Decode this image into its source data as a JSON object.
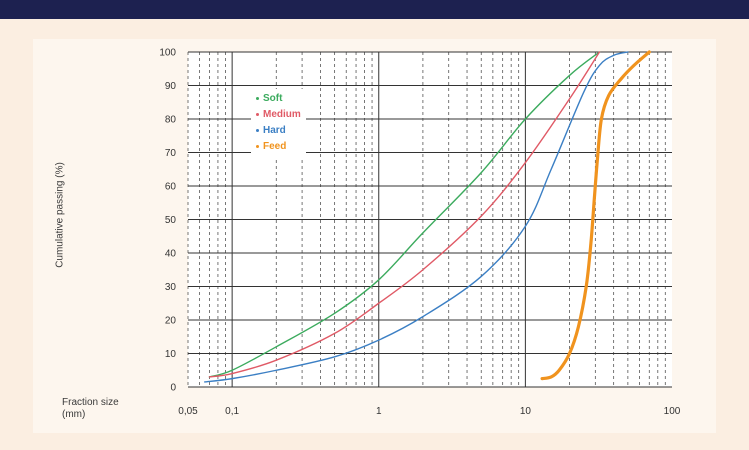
{
  "chart_data": {
    "type": "line",
    "title": "",
    "xlabel": "Fraction size\n(mm)",
    "ylabel": "Cumulative passing (%)",
    "xscale": "log",
    "xlim": [
      0.05,
      100
    ],
    "ylim": [
      0,
      100
    ],
    "xticks": [
      0.05,
      0.1,
      1,
      10,
      100
    ],
    "xtick_labels": [
      "0,05",
      "0,1",
      "1",
      "10",
      "100"
    ],
    "yticks": [
      0,
      10,
      20,
      30,
      40,
      50,
      60,
      70,
      80,
      90,
      100
    ],
    "ytick_labels": [
      "0",
      "10",
      "20",
      "30",
      "40",
      "50",
      "60",
      "70",
      "80",
      "90",
      "100"
    ],
    "grid": true,
    "legend_position": "top-left",
    "series": [
      {
        "name": "Soft",
        "color": "#3cab5e",
        "x": [
          0.07,
          0.1,
          0.2,
          0.5,
          1,
          2,
          5,
          10,
          20,
          32
        ],
        "y": [
          3,
          5,
          12,
          22,
          32,
          46,
          64,
          80,
          93,
          100
        ]
      },
      {
        "name": "Medium",
        "color": "#e05a66",
        "x": [
          0.07,
          0.1,
          0.2,
          0.5,
          1,
          2,
          5,
          10,
          20,
          32
        ],
        "y": [
          3,
          4,
          8,
          16,
          25,
          35,
          51,
          67,
          86,
          100
        ]
      },
      {
        "name": "Hard",
        "color": "#3b7fc4",
        "x": [
          0.065,
          0.1,
          0.2,
          0.5,
          1,
          2,
          5,
          10,
          15,
          25,
          32,
          40,
          50
        ],
        "y": [
          1.5,
          2.5,
          5,
          9,
          14,
          21,
          33,
          48,
          65,
          88,
          96,
          99,
          100
        ]
      },
      {
        "name": "Feed",
        "color": "#f0931e",
        "x": [
          13,
          15,
          17,
          20,
          23,
          26,
          28,
          29.5,
          31,
          33,
          37,
          45,
          55,
          70
        ],
        "y": [
          2.5,
          3,
          5,
          10,
          18,
          30,
          43,
          56,
          68,
          80,
          87,
          92,
          96,
          100
        ]
      }
    ]
  }
}
